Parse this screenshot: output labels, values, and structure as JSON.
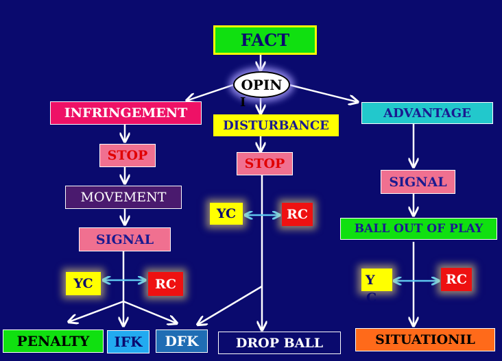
{
  "colors": {
    "background": "#0a0a6e",
    "arrow": "#ffffff",
    "double_arrow": "#5fc8f0"
  },
  "nodes": {
    "fact": "FACT",
    "opinion": "OPIN",
    "opinion_overflow": "I",
    "infringement": "INFRINGEMENT",
    "disturbance": "DISTURBANCE",
    "advantage": "ADVANTAGE",
    "stop_left": "STOP",
    "stop_mid": "STOP",
    "movement": "MOVEMENT",
    "signal_left": "SIGNAL",
    "signal_right": "SIGNAL",
    "ball_out_of_play": "BALL OUT OF PLAY",
    "yc_left": "YC",
    "rc_left": "RC",
    "yc_mid": "YC",
    "rc_mid": "RC",
    "yc_right": "Y",
    "yc_right_overflow": "C",
    "rc_right": "RC",
    "penalty": "PENALTY",
    "ifk": "IFK",
    "dfk": "DFK",
    "drop_ball": "DROP BALL",
    "situationil": "SITUATIONIL"
  }
}
